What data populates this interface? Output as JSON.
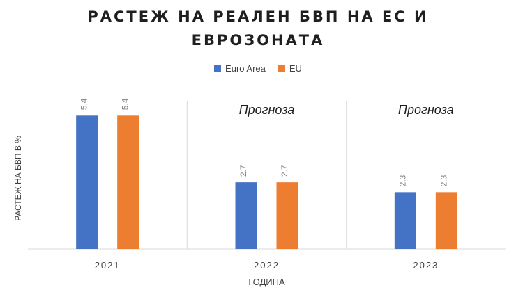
{
  "chart_data": {
    "type": "bar",
    "title_lines": [
      "РАСТЕЖ НА РЕАЛЕН БВП НА ЕС И",
      "ЕВРОЗОНАТА"
    ],
    "xlabel": "ГОДИНА",
    "ylabel": "РАСТЕЖ НА БВП В %",
    "categories": [
      "2021",
      "2022",
      "2023"
    ],
    "annotations": [
      "",
      "Прогноза",
      "Прогноза"
    ],
    "series": [
      {
        "name": "Euro Area",
        "color": "#4472c4",
        "values": [
          5.4,
          2.7,
          2.3
        ]
      },
      {
        "name": "EU",
        "color": "#ed7d31",
        "values": [
          5.4,
          2.7,
          2.3
        ]
      }
    ],
    "ylim": [
      0,
      6
    ],
    "legend_position": "top-center",
    "grid": false
  }
}
